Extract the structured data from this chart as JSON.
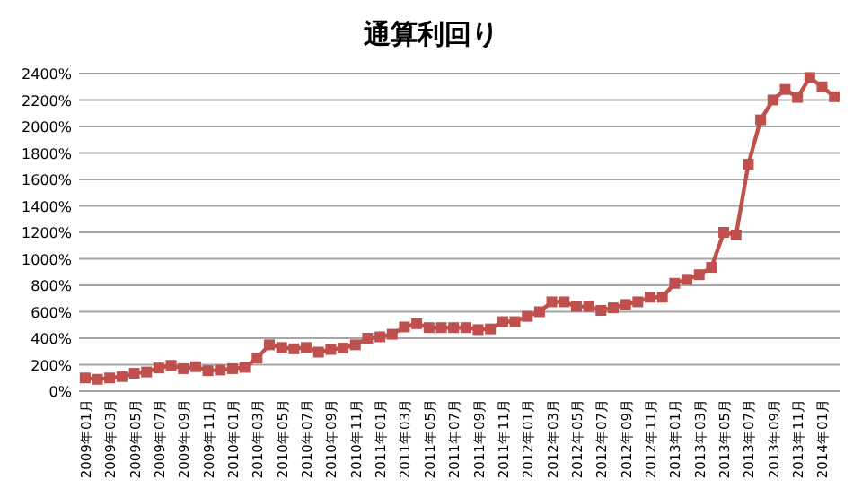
{
  "chart_data": {
    "type": "line",
    "title": "通算利回り",
    "categories": [
      "2009年01月",
      null,
      "2009年03月",
      null,
      "2009年05月",
      null,
      "2009年07月",
      null,
      "2009年09月",
      null,
      "2009年11月",
      null,
      "2010年01月",
      null,
      "2010年03月",
      null,
      "2010年05月",
      null,
      "2010年07月",
      null,
      "2010年09月",
      null,
      "2010年11月",
      null,
      "2011年01月",
      null,
      "2011年03月",
      null,
      "2011年05月",
      null,
      "2011年07月",
      null,
      "2011年09月",
      null,
      "2011年11月",
      null,
      "2012年01月",
      null,
      "2012年03月",
      null,
      "2012年05月",
      null,
      "2012年07月",
      null,
      "2012年09月",
      null,
      "2012年11月",
      null,
      "2013年01月",
      null,
      "2013年03月",
      null,
      "2013年05月",
      null,
      "2013年07月",
      null,
      "2013年09月",
      null,
      "2013年11月",
      null,
      "2014年01月",
      null
    ],
    "series": [
      {
        "color": "#c0504d",
        "values": [
          100,
          90,
          100,
          110,
          135,
          145,
          175,
          195,
          170,
          185,
          155,
          160,
          170,
          180,
          250,
          350,
          330,
          320,
          330,
          295,
          315,
          325,
          350,
          400,
          410,
          430,
          485,
          510,
          480,
          480,
          480,
          480,
          465,
          470,
          525,
          525,
          565,
          600,
          675,
          675,
          640,
          640,
          610,
          630,
          655,
          675,
          710,
          710,
          815,
          845,
          880,
          935,
          1200,
          1180,
          1715,
          2050,
          2200,
          2280,
          2220,
          2370,
          2300,
          2225
        ]
      }
    ],
    "ylim": [
      0,
      2400
    ],
    "yticks": [
      {
        "value": 0,
        "label": "0%"
      },
      {
        "value": 200,
        "label": "200%"
      },
      {
        "value": 400,
        "label": "400%"
      },
      {
        "value": 600,
        "label": "600%"
      },
      {
        "value": 800,
        "label": "800%"
      },
      {
        "value": 1000,
        "label": "1000%"
      },
      {
        "value": 1200,
        "label": "1200%"
      },
      {
        "value": 1400,
        "label": "1400%"
      },
      {
        "value": 1600,
        "label": "1600%"
      },
      {
        "value": 1800,
        "label": "1800%"
      },
      {
        "value": 2000,
        "label": "2000%"
      },
      {
        "value": 2200,
        "label": "2200%"
      },
      {
        "value": 2400,
        "label": "2400%"
      }
    ],
    "grid": "y",
    "marker": "square",
    "line_style": "solid"
  }
}
